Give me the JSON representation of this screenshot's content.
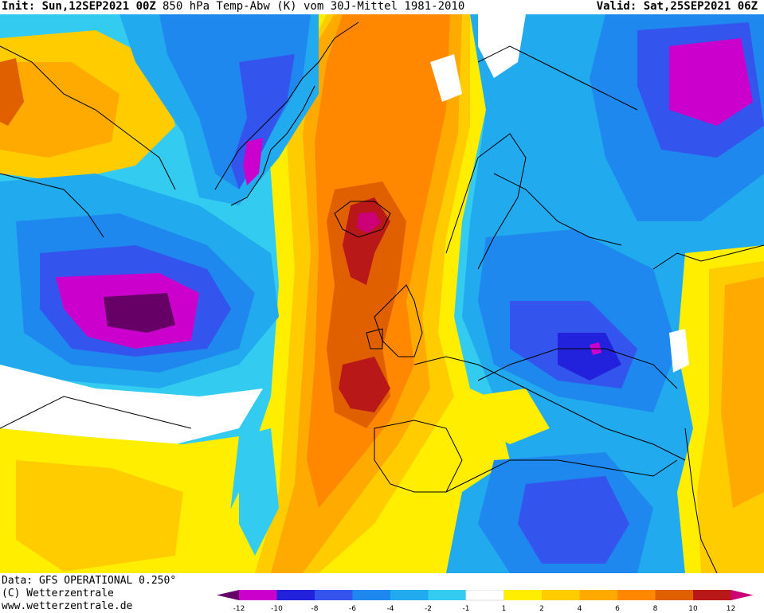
{
  "header": {
    "init": "Init: Sun,12SEP2021 00Z",
    "title": "850 hPa Temp-Abw (K) vom 30J-Mittel 1981-2010",
    "valid": "Valid: Sat,25SEP2021 06Z"
  },
  "footer": {
    "data_line": "Data: GFS OPERATIONAL 0.250°",
    "copyright": "(C) Wetterzentrale",
    "url": "www.wetterzentrale.de"
  },
  "colorbar": {
    "tick_labels": [
      "-12",
      "-10",
      "-8",
      "-6",
      "-4",
      "-2",
      "-1",
      "1",
      "2",
      "4",
      "6",
      "8",
      "10",
      "12"
    ],
    "colors": [
      "#cc00cc",
      "#2222dd",
      "#3355ee",
      "#1e88ee",
      "#22aaee",
      "#33ccf0",
      "#ffffff",
      "#ffee00",
      "#ffcc00",
      "#ffaa00",
      "#ff8800",
      "#e06000",
      "#b81818"
    ],
    "end_low": "#660066",
    "end_high": "#cc0077"
  },
  "colors": {
    "deep_purple": "#660066",
    "magenta": "#cc00cc",
    "blue_dark": "#2222dd",
    "blue": "#3355ee",
    "blue_mid": "#1e88ee",
    "blue_light": "#22aaee",
    "cyan": "#33ccf0",
    "yellow": "#ffee00",
    "gold": "#ffcc00",
    "orange_light": "#ffaa00",
    "orange": "#ff8800",
    "orange_dark": "#e06000",
    "red": "#b81818",
    "crimson": "#cc0077"
  }
}
